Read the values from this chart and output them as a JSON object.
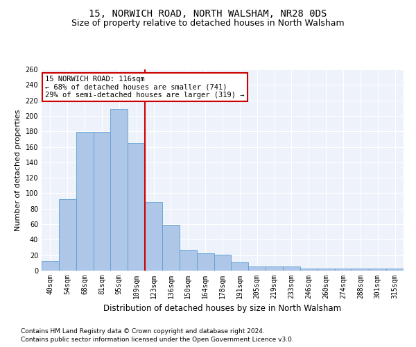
{
  "title1": "15, NORWICH ROAD, NORTH WALSHAM, NR28 0DS",
  "title2": "Size of property relative to detached houses in North Walsham",
  "xlabel": "Distribution of detached houses by size in North Walsham",
  "ylabel": "Number of detached properties",
  "footnote1": "Contains HM Land Registry data © Crown copyright and database right 2024.",
  "footnote2": "Contains public sector information licensed under the Open Government Licence v3.0.",
  "bar_labels": [
    "40sqm",
    "54sqm",
    "68sqm",
    "81sqm",
    "95sqm",
    "109sqm",
    "123sqm",
    "136sqm",
    "150sqm",
    "164sqm",
    "178sqm",
    "191sqm",
    "205sqm",
    "219sqm",
    "233sqm",
    "246sqm",
    "260sqm",
    "274sqm",
    "288sqm",
    "301sqm",
    "315sqm"
  ],
  "bar_values": [
    13,
    92,
    179,
    179,
    209,
    165,
    89,
    59,
    27,
    22,
    21,
    11,
    5,
    5,
    5,
    3,
    3,
    3,
    3,
    3,
    3
  ],
  "bar_color": "#aec6e8",
  "bar_edge_color": "#5a9fd4",
  "vline_x": 5.5,
  "vline_color": "#cc0000",
  "annotation_box_text": "15 NORWICH ROAD: 116sqm\n← 68% of detached houses are smaller (741)\n29% of semi-detached houses are larger (319) →",
  "annotation_box_color": "#cc0000",
  "ylim": [
    0,
    260
  ],
  "yticks": [
    0,
    20,
    40,
    60,
    80,
    100,
    120,
    140,
    160,
    180,
    200,
    220,
    240,
    260
  ],
  "bg_color": "#eef2fa",
  "grid_color": "#ffffff",
  "title1_fontsize": 10,
  "title2_fontsize": 9,
  "xlabel_fontsize": 8.5,
  "ylabel_fontsize": 8,
  "tick_fontsize": 7,
  "annot_fontsize": 7.5,
  "footnote_fontsize": 6.5
}
